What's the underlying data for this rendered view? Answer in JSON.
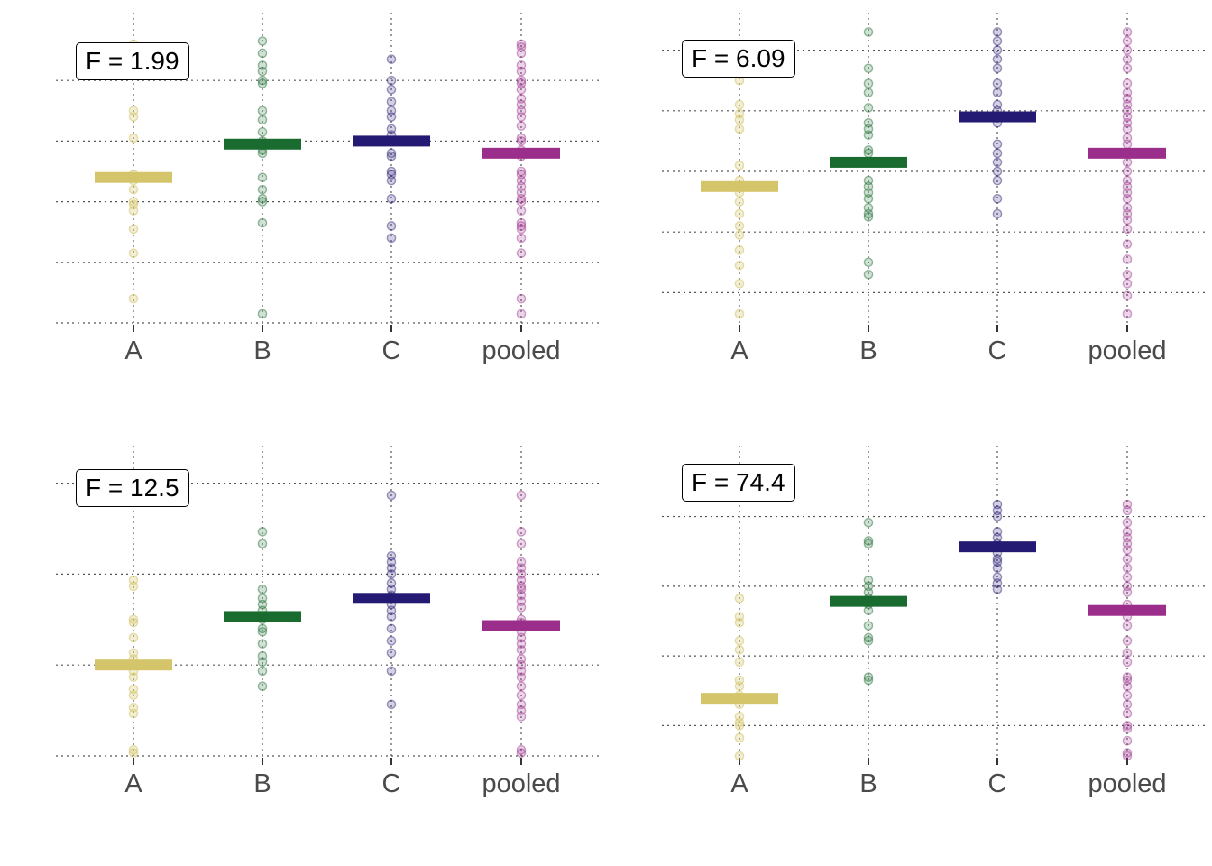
{
  "colors": {
    "A": "#D4C56A",
    "B": "#1A6B2F",
    "C": "#251A73",
    "pooled": "#9C2E8B",
    "grid": "#555555"
  },
  "chart_data": [
    {
      "type": "scatter",
      "panel": "top-left",
      "annotation": "F = 1.99",
      "categories": [
        "A",
        "B",
        "C",
        "pooled"
      ],
      "ylim": [
        0,
        10
      ],
      "grid_y": [
        0,
        2,
        4,
        6,
        8
      ],
      "series": [
        {
          "name": "A",
          "mean": 4.8,
          "values": [
            9.2,
            8.5,
            7.0,
            6.8,
            6.1,
            4.7,
            4.9,
            4.4,
            4.0,
            3.9,
            3.7,
            3.1,
            2.3,
            0.8
          ]
        },
        {
          "name": "B",
          "mean": 5.9,
          "values": [
            9.3,
            8.9,
            8.5,
            8.3,
            8.0,
            7.9,
            7.0,
            6.7,
            6.3,
            6.0,
            5.7,
            5.6,
            4.8,
            4.4,
            4.1,
            4.0,
            3.3,
            0.3
          ]
        },
        {
          "name": "C",
          "mean": 6.0,
          "values": [
            8.7,
            8.0,
            7.7,
            7.3,
            7.0,
            6.8,
            6.4,
            6.2,
            5.6,
            5.5,
            5.0,
            4.9,
            4.7,
            4.1,
            3.2,
            2.8
          ]
        },
        {
          "name": "pooled",
          "mean": 5.6,
          "values": [
            9.2,
            9.1,
            8.9,
            8.5,
            8.3,
            8.0,
            7.9,
            7.7,
            7.4,
            7.2,
            7.0,
            6.8,
            6.5,
            6.1,
            6.0,
            5.7,
            5.5,
            5.0,
            4.9,
            4.7,
            4.5,
            4.3,
            4.1,
            4.0,
            3.7,
            3.3,
            3.2,
            3.1,
            2.8,
            2.3,
            0.8,
            0.3
          ]
        }
      ]
    },
    {
      "type": "scatter",
      "panel": "top-right",
      "annotation": "F = 6.09",
      "categories": [
        "A",
        "B",
        "C",
        "pooled"
      ],
      "ylim": [
        0,
        10
      ],
      "grid_y": [
        1,
        3,
        5,
        7,
        9
      ],
      "series": [
        {
          "name": "A",
          "mean": 4.5,
          "values": [
            8.0,
            7.2,
            6.9,
            6.7,
            6.4,
            5.2,
            4.7,
            4.5,
            4.3,
            4.0,
            3.6,
            3.2,
            2.9,
            2.4,
            1.9,
            1.3,
            0.3
          ]
        },
        {
          "name": "B",
          "mean": 5.3,
          "values": [
            9.6,
            8.4,
            7.9,
            7.6,
            7.1,
            6.6,
            6.4,
            6.2,
            5.7,
            5.6,
            5.3,
            4.7,
            4.5,
            4.3,
            4.1,
            3.8,
            3.6,
            3.5,
            2.0,
            1.6
          ]
        },
        {
          "name": "C",
          "mean": 6.8,
          "values": [
            9.6,
            9.3,
            9.0,
            8.7,
            8.4,
            7.9,
            7.6,
            7.2,
            7.0,
            6.8,
            6.6,
            5.9,
            5.6,
            5.3,
            5.0,
            4.7,
            4.1,
            3.6
          ]
        },
        {
          "name": "pooled",
          "mean": 5.6,
          "values": [
            9.6,
            9.3,
            9.0,
            8.7,
            8.4,
            7.9,
            7.6,
            7.4,
            7.2,
            7.0,
            6.8,
            6.6,
            6.4,
            6.1,
            5.9,
            5.6,
            5.3,
            5.0,
            4.7,
            4.5,
            4.3,
            4.1,
            3.8,
            3.6,
            3.4,
            3.1,
            2.6,
            2.1,
            1.6,
            1.3,
            0.9,
            0.3
          ]
        }
      ]
    },
    {
      "type": "scatter",
      "panel": "bottom-left",
      "annotation": "F = 12.5",
      "categories": [
        "A",
        "B",
        "C",
        "pooled"
      ],
      "ylim": [
        0,
        10
      ],
      "grid_y": [
        0,
        3,
        6,
        9
      ],
      "series": [
        {
          "name": "A",
          "mean": 3.0,
          "values": [
            5.8,
            5.6,
            4.5,
            4.4,
            3.9,
            3.4,
            3.2,
            2.8,
            2.6,
            2.2,
            2.0,
            1.6,
            1.4,
            0.2,
            0.1
          ]
        },
        {
          "name": "B",
          "mean": 4.6,
          "values": [
            7.4,
            7.0,
            5.5,
            5.2,
            5.0,
            4.8,
            4.5,
            4.2,
            4.1,
            3.7,
            3.3,
            3.1,
            2.8,
            2.3
          ]
        },
        {
          "name": "C",
          "mean": 5.2,
          "values": [
            8.6,
            6.6,
            6.4,
            6.2,
            6.0,
            5.7,
            5.5,
            5.3,
            5.0,
            4.8,
            4.6,
            4.2,
            3.8,
            3.4,
            2.8,
            1.7
          ]
        },
        {
          "name": "pooled",
          "mean": 4.3,
          "values": [
            8.6,
            7.4,
            7.0,
            6.4,
            6.2,
            6.0,
            5.8,
            5.6,
            5.5,
            5.3,
            5.1,
            4.9,
            4.5,
            4.4,
            4.1,
            3.9,
            3.7,
            3.5,
            3.2,
            3.0,
            2.8,
            2.6,
            2.3,
            2.0,
            1.7,
            1.5,
            1.3,
            0.2,
            0.1
          ]
        }
      ]
    },
    {
      "type": "scatter",
      "panel": "bottom-right",
      "annotation": "F = 74.4",
      "categories": [
        "A",
        "B",
        "C",
        "pooled"
      ],
      "ylim": [
        0,
        10
      ],
      "grid_y": [
        1,
        3.3,
        5.6,
        7.9
      ],
      "series": [
        {
          "name": "A",
          "mean": 1.9,
          "values": [
            5.2,
            4.6,
            4.4,
            3.8,
            3.5,
            3.1,
            2.5,
            2.3,
            2.0,
            1.7,
            1.3,
            1.1,
            1.0,
            0.6,
            0.0
          ]
        },
        {
          "name": "B",
          "mean": 5.1,
          "values": [
            7.7,
            7.1,
            7.0,
            5.8,
            5.6,
            5.4,
            5.2,
            5.0,
            4.8,
            4.3,
            3.9,
            3.8,
            2.6,
            2.5
          ]
        },
        {
          "name": "C",
          "mean": 6.9,
          "values": [
            8.3,
            8.1,
            7.9,
            7.4,
            7.2,
            7.0,
            6.9,
            6.7,
            6.5,
            6.4,
            6.2,
            5.9,
            5.7,
            5.5
          ]
        },
        {
          "name": "pooled",
          "mean": 4.8,
          "values": [
            8.3,
            8.1,
            7.7,
            7.4,
            7.2,
            7.0,
            6.8,
            6.5,
            6.2,
            5.9,
            5.6,
            5.4,
            5.0,
            4.6,
            4.3,
            3.8,
            3.4,
            3.1,
            2.6,
            2.5,
            2.3,
            2.0,
            1.7,
            1.4,
            1.0,
            0.9,
            0.5,
            0.1,
            0.0
          ]
        }
      ]
    }
  ]
}
